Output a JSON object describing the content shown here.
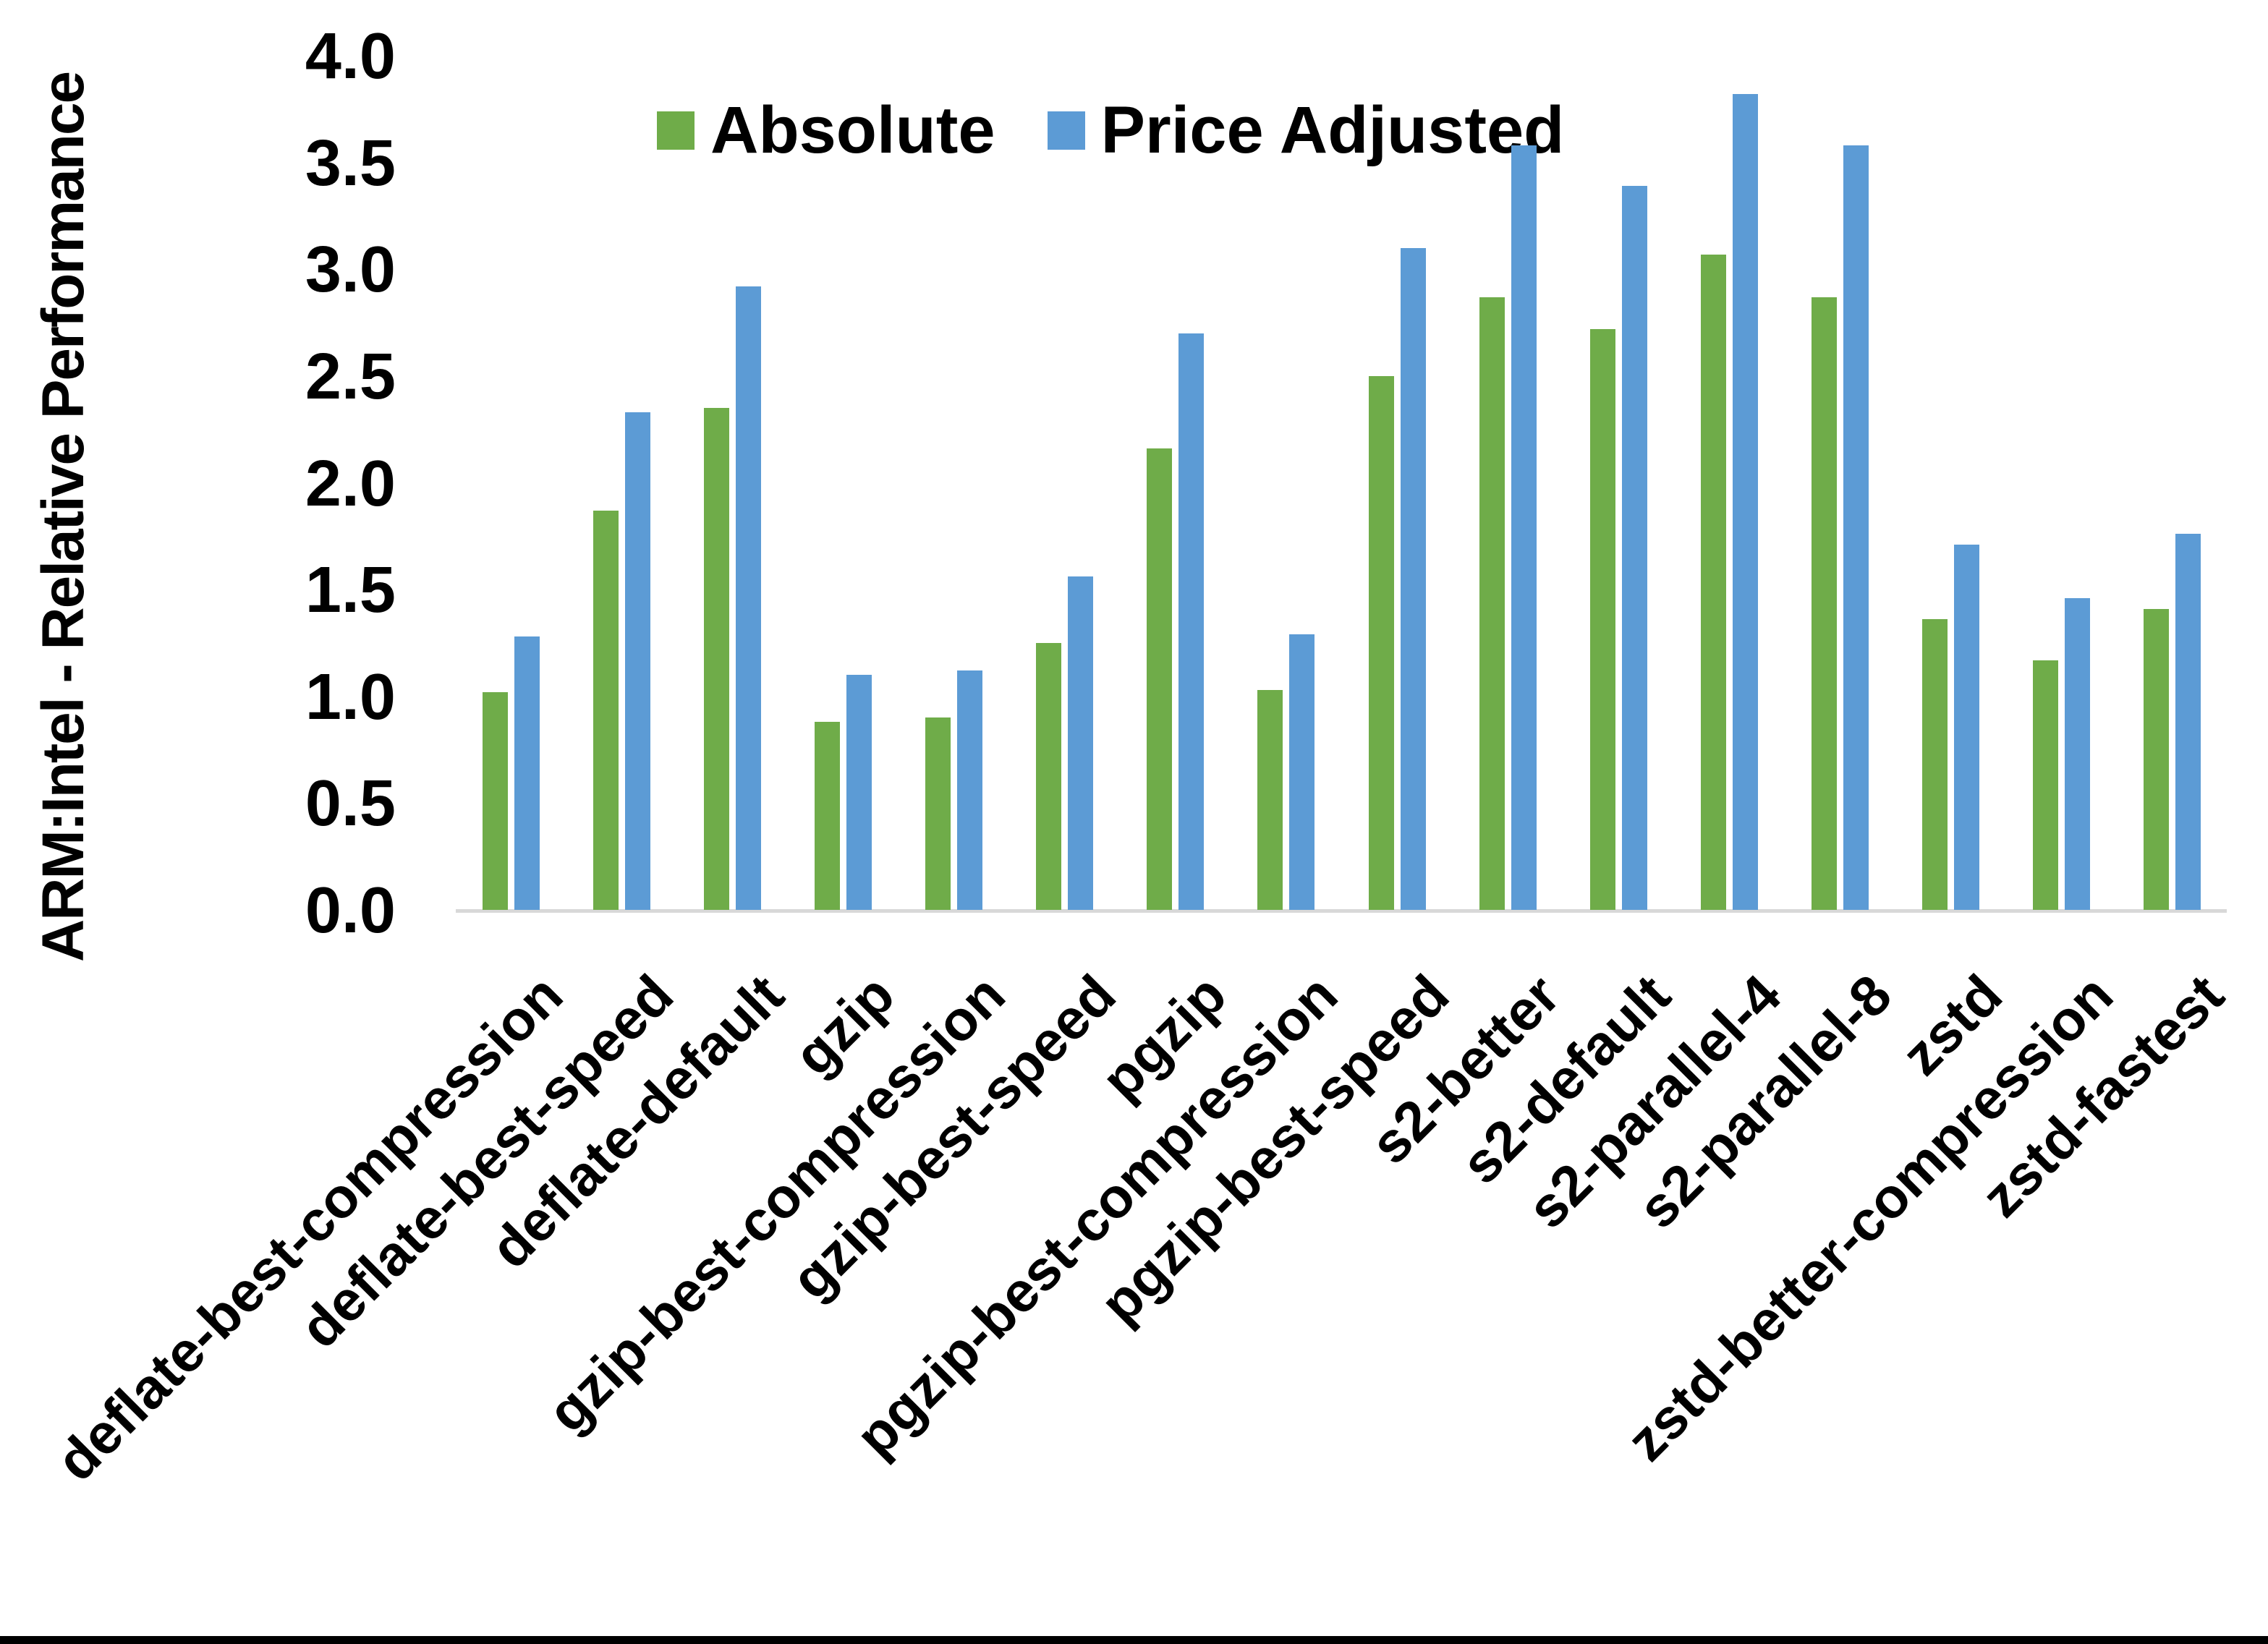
{
  "chart_data": {
    "type": "bar",
    "title": "",
    "xlabel": "",
    "ylabel": "ARM:Intel - Relative Performance",
    "ylim": [
      0.0,
      4.0
    ],
    "ytick_step": 0.5,
    "ytick_labels": [
      "4.0",
      "3.5",
      "3.0",
      "2.5",
      "2.0",
      "1.5",
      "1.0",
      "0.5",
      "0.0"
    ],
    "grid": false,
    "legend_position": "top-center",
    "categories": [
      "deflate-best-compression",
      "deflate-best-speed",
      "deflate-default",
      "gzip",
      "gzip-best-compression",
      "gzip-best-speed",
      "pgzip",
      "pgzip-best-compression",
      "pgzip-best-speed",
      "s2-better",
      "s2-default",
      "s2-parallel-4",
      "s2-parallel-8",
      "zstd",
      "zstd-better-compression",
      "zstd-fastest"
    ],
    "series": [
      {
        "name": "Absolute",
        "color": "#6fac49",
        "values": [
          1.02,
          1.87,
          2.35,
          0.88,
          0.9,
          1.25,
          2.16,
          1.03,
          2.5,
          2.87,
          2.72,
          3.07,
          2.87,
          1.36,
          1.17,
          1.41
        ]
      },
      {
        "name": "Price Adjusted",
        "color": "#5c9bd5",
        "values": [
          1.28,
          2.33,
          2.92,
          1.1,
          1.12,
          1.56,
          2.7,
          1.29,
          3.1,
          3.58,
          3.39,
          3.82,
          3.58,
          1.71,
          1.46,
          1.76
        ]
      }
    ],
    "colors": {
      "axis_line": "#d8d8d8",
      "text": "#000000",
      "background": "#ffffff",
      "bottom_border": "#000000"
    }
  }
}
